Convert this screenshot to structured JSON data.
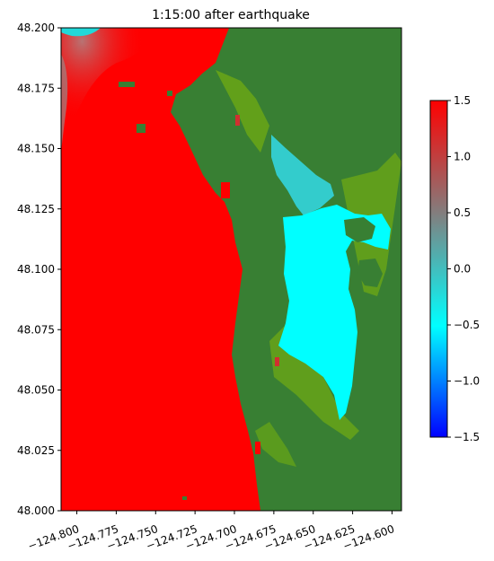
{
  "chart_data": {
    "type": "heatmap",
    "title": "1:15:00 after earthquake",
    "xlabel": "",
    "ylabel": "",
    "xlim": [
      -124.81,
      -124.594
    ],
    "ylim": [
      48.0,
      48.2
    ],
    "x_ticks": [
      -124.8,
      -124.775,
      -124.75,
      -124.725,
      -124.7,
      -124.675,
      -124.65,
      -124.625,
      -124.6
    ],
    "x_tick_labels": [
      "−124.800",
      "−124.775",
      "−124.750",
      "−124.725",
      "−124.700",
      "−124.675",
      "−124.650",
      "−124.625",
      "−124.600"
    ],
    "y_ticks": [
      48.0,
      48.025,
      48.05,
      48.075,
      48.1,
      48.125,
      48.15,
      48.175,
      48.2
    ],
    "y_tick_labels": [
      "48.000",
      "48.025",
      "48.050",
      "48.075",
      "48.100",
      "48.125",
      "48.150",
      "48.175",
      "48.200"
    ],
    "colorbar": {
      "range": [
        -1.5,
        1.5
      ],
      "ticks": [
        -1.5,
        -1.0,
        -0.5,
        0.0,
        0.5,
        1.0,
        1.5
      ],
      "tick_labels": [
        "−1.5",
        "−1.0",
        "−0.5",
        "0.0",
        "0.5",
        "1.0",
        "1.5"
      ],
      "colors": [
        "#0000ff",
        "#00ffff",
        "#808080",
        "#ff0000"
      ]
    },
    "colors": {
      "land": "#387f33",
      "shallow_vegetation": "#6aa616",
      "ocean_high": "#ff0000",
      "bay_water": "#00ffff"
    },
    "grid": false
  }
}
